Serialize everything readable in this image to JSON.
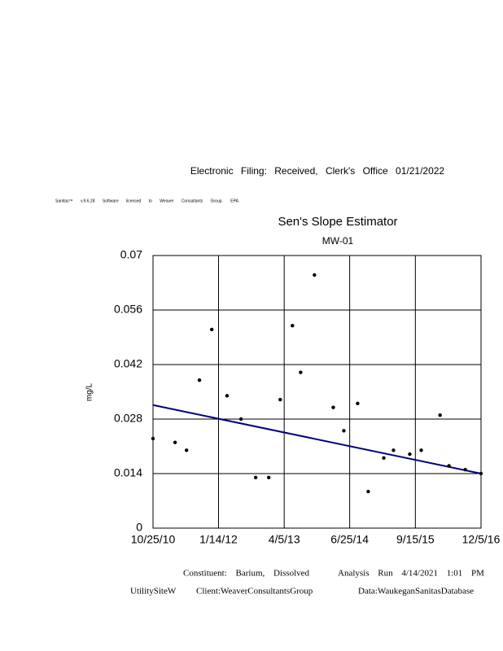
{
  "header": "Electronic Filing: Received, Clerk's Office 01/21/2022",
  "software_note": "Sanitas™ v.9.6.28 Software licensed to Weaver Consultants Group. EPA",
  "chart_data": {
    "type": "scatter",
    "title": "Sen's Slope Estimator",
    "subtitle": "MW-01",
    "y_label": "mg/L",
    "x": [
      "10/25/10",
      "3/24/11",
      "6/10/11",
      "9/6/11",
      "11/29/11",
      "3/12/12",
      "6/15/12",
      "9/23/12",
      "12/21/12",
      "3/9/13",
      "5/31/13",
      "7/26/13",
      "10/28/13",
      "3/5/14",
      "5/16/14",
      "8/18/14",
      "10/29/14",
      "2/12/15",
      "4/19/15",
      "8/8/15",
      "10/25/15",
      "3/1/16",
      "5/1/16",
      "8/20/16",
      "12/5/16"
    ],
    "values": [
      0.023,
      0.022,
      0.02,
      0.038,
      0.051,
      0.034,
      0.028,
      0.013,
      0.013,
      0.033,
      0.052,
      0.04,
      0.065,
      0.031,
      0.025,
      0.032,
      0.0094,
      0.018,
      0.02,
      0.019,
      0.02,
      0.029,
      0.016,
      0.015,
      0.014
    ],
    "color": "#000000",
    "trend_line": {
      "x": [
        "10/25/10",
        "12/5/16"
      ],
      "values": [
        0.0316,
        0.014
      ],
      "color": "#000080"
    },
    "xlim": [
      "10/25/10",
      "12/5/16"
    ],
    "xticks": [
      "10/25/10",
      "1/14/12",
      "4/5/13",
      "6/25/14",
      "9/15/15",
      "12/5/16"
    ],
    "ylim": [
      0,
      0.07
    ],
    "yticks": [
      0,
      0.014,
      0.028,
      0.042,
      0.056,
      0.07
    ],
    "grid": true
  },
  "footer": {
    "constituent": "Constituent: Barium, Dissolved",
    "analysis_run": "Analysis Run 4/14/2021 1:01 PM",
    "site": "UtilitySiteW",
    "client": "Client:WeaverConsultantsGroup",
    "data_source": "Data:WaukeganSanitasDatabase"
  }
}
